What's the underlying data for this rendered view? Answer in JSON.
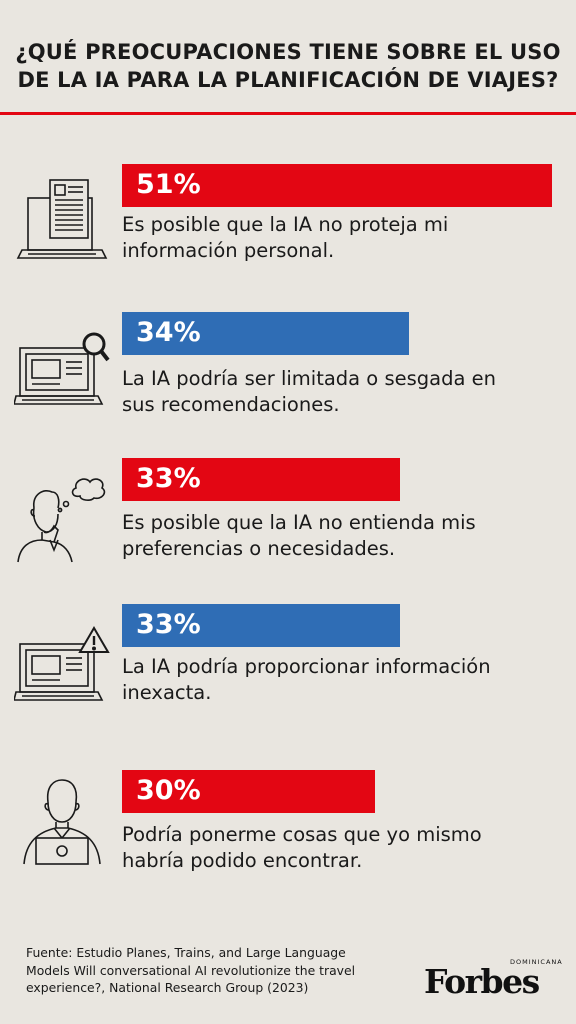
{
  "title_lines": [
    "¿QUÉ PREOCUPACIONES TIENE SOBRE EL USO",
    "DE LA IA PARA LA PLANIFICACIÓN DE VIAJES?"
  ],
  "colors": {
    "red": "#e30613",
    "blue": "#2f6db5",
    "rule": "#e30613"
  },
  "chart_data": {
    "type": "bar",
    "title": "¿QUÉ PREOCUPACIONES TIENE SOBRE EL USO DE LA IA PARA LA PLANIFICACIÓN DE VIAJES?",
    "categories": [
      "Es posible que la IA no proteja mi información personal.",
      "La IA podría ser limitada o sesgada en sus recomendaciones.",
      "Es posible que la IA no entienda mis preferencias o necesidades.",
      "La IA podría proporcionar información inexacta.",
      "Podría ponerme cosas que yo mismo habría podido encontrar."
    ],
    "values": [
      51,
      34,
      33,
      33,
      30
    ],
    "value_labels": [
      "51%",
      "34%",
      "33%",
      "33%",
      "30%"
    ],
    "bar_colors": [
      "#e30613",
      "#2f6db5",
      "#e30613",
      "#2f6db5",
      "#e30613"
    ],
    "xlabel": "",
    "ylabel": "",
    "ylim": [
      0,
      51
    ]
  },
  "items": [
    {
      "label": "51%",
      "desc_lines": [
        "Es posible que la IA no proteja mi",
        "información personal."
      ],
      "icon": "document-computer-icon"
    },
    {
      "label": "34%",
      "desc_lines": [
        "La IA podría ser limitada o sesgada en",
        "sus recomendaciones."
      ],
      "icon": "computer-search-icon"
    },
    {
      "label": "33%",
      "desc_lines": [
        "Es posible que la IA no entienda mis",
        "preferencias o necesidades."
      ],
      "icon": "thinking-person-icon"
    },
    {
      "label": "33%",
      "desc_lines": [
        "La IA podría proporcionar información",
        "inexacta."
      ],
      "icon": "computer-warning-icon"
    },
    {
      "label": "30%",
      "desc_lines": [
        "Podría ponerme cosas que yo mismo",
        "habría podido encontrar."
      ],
      "icon": "person-laptop-icon"
    }
  ],
  "source_lines": [
    "Fuente: Estudio Planes, Trains, and Large Language",
    "Models Will conversational AI revolutionize the travel",
    "experience?, National Research Group (2023)"
  ],
  "logo": {
    "word": "Forbes",
    "sub": "DOMINICANA"
  }
}
